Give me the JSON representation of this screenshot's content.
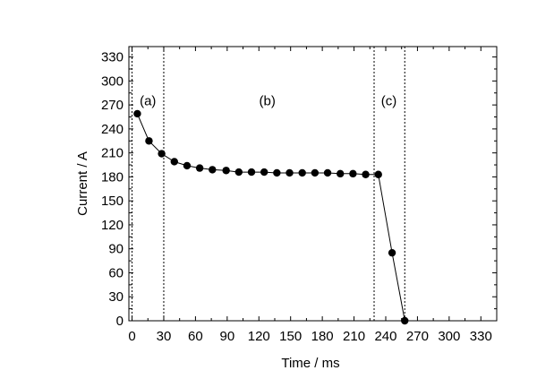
{
  "chart_data": {
    "type": "line",
    "title": "",
    "xlabel": "Time / ms",
    "ylabel": "Current / A",
    "xlim": [
      -3,
      345
    ],
    "ylim": [
      0,
      343
    ],
    "xticks": [
      0,
      30,
      60,
      90,
      120,
      150,
      180,
      210,
      240,
      270,
      300,
      330
    ],
    "yticks": [
      0,
      30,
      60,
      90,
      120,
      150,
      180,
      210,
      240,
      270,
      300,
      330
    ],
    "grid": false,
    "legend": "none",
    "marker": "filled-circle",
    "line_color": "#000000",
    "series": [
      {
        "x": [
          5,
          16,
          28,
          40,
          52,
          64,
          76,
          89,
          101,
          113,
          125,
          137,
          149,
          161,
          173,
          185,
          197,
          209,
          221,
          233,
          246,
          258
        ],
        "y": [
          259,
          225,
          209,
          199,
          194,
          191,
          189,
          188,
          186,
          186,
          186,
          185,
          185,
          185,
          185,
          185,
          184,
          184,
          183,
          183,
          85,
          0
        ]
      }
    ],
    "vlines": [
      0,
      30,
      229,
      258
    ],
    "annotations": [
      {
        "label": "(a)",
        "x": 15,
        "y": 275
      },
      {
        "label": "(b)",
        "x": 128,
        "y": 275
      },
      {
        "label": "(c)",
        "x": 243,
        "y": 275
      }
    ]
  }
}
